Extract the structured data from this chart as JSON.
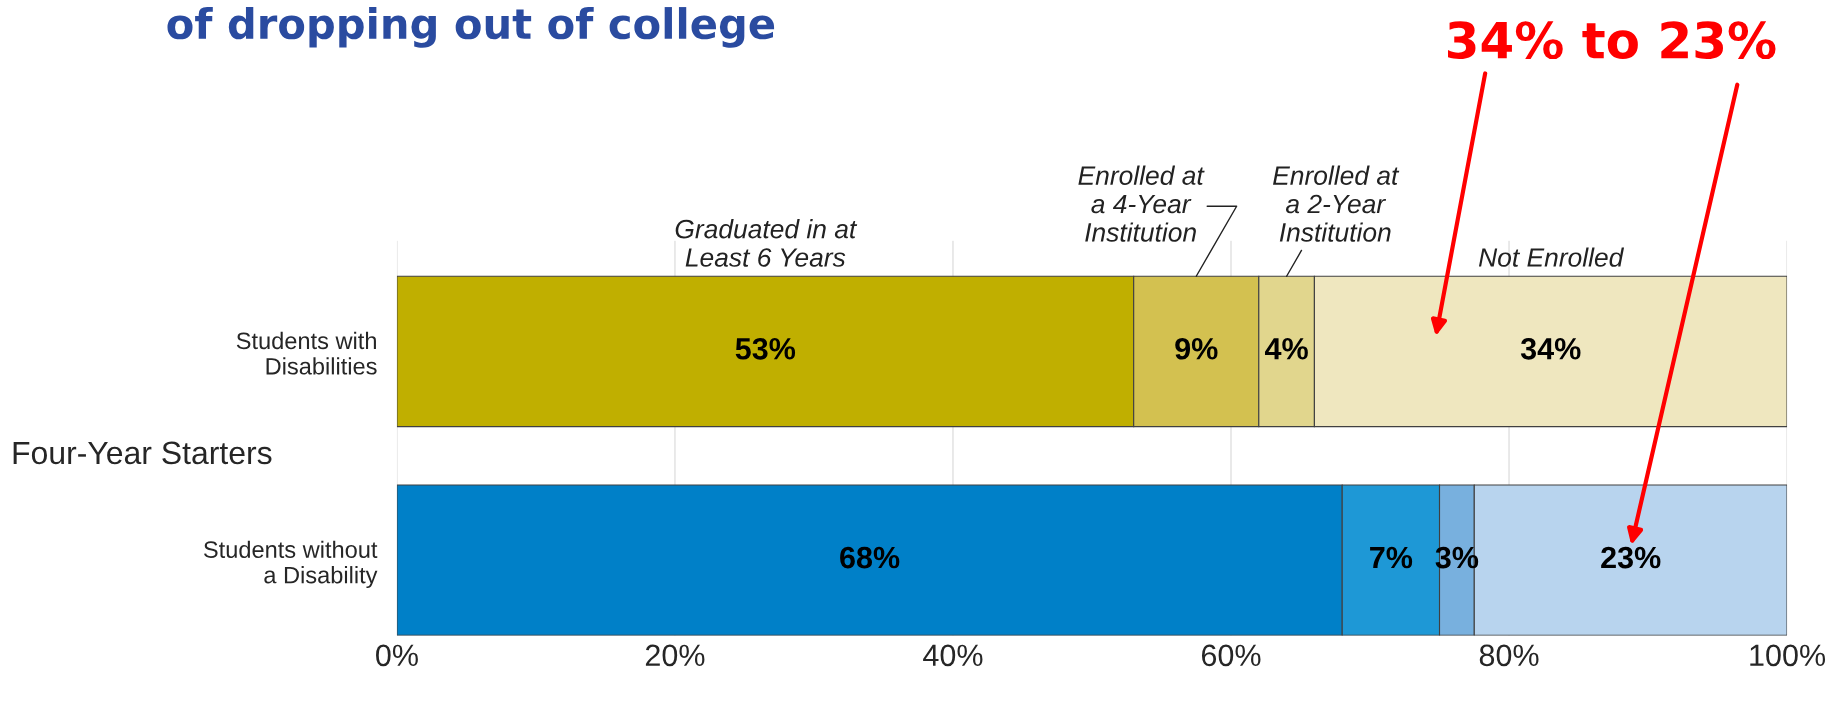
{
  "chart_data": {
    "type": "bar",
    "orientation": "horizontal",
    "stacked": true,
    "title": "of dropping out of college",
    "categories": [
      "Students with\nDisabilities",
      "Students without\na Disability"
    ],
    "series": [
      {
        "name": "Graduated in at\nLeast 6 Years",
        "colors": [
          "#c0af00",
          "#0080c8"
        ],
        "values": [
          53,
          68
        ],
        "value_labels": [
          "53%",
          "68%"
        ]
      },
      {
        "name": "Enrolled at\na 4-Year\nInstitution",
        "colors": [
          "#d3c150",
          "#1e98d6"
        ],
        "values": [
          9,
          7
        ],
        "value_labels": [
          "9%",
          "7%"
        ]
      },
      {
        "name": "Enrolled at\na 2-Year\nInstitution",
        "colors": [
          "#e1d68d",
          "#78b0de"
        ],
        "values": [
          4,
          2.5
        ],
        "value_labels": [
          "4%",
          "3%"
        ]
      },
      {
        "name": "Not Enrolled",
        "colors": [
          "#efe7bf",
          "#b8d4ee"
        ],
        "values": [
          34,
          22.5
        ],
        "value_labels": [
          "34%",
          "23%"
        ]
      }
    ],
    "xlim": [
      0,
      100
    ],
    "xticks": [
      {
        "value": 0,
        "label": "0%"
      },
      {
        "value": 20,
        "label": "20%"
      },
      {
        "value": 40,
        "label": "40%"
      },
      {
        "value": 60,
        "label": "60%"
      },
      {
        "value": 80,
        "label": "80%"
      },
      {
        "value": 100,
        "label": "100%"
      }
    ],
    "grid": "x",
    "legend": false,
    "annotations": [
      "Four-Year Starters",
      "34% to 23%"
    ]
  }
}
